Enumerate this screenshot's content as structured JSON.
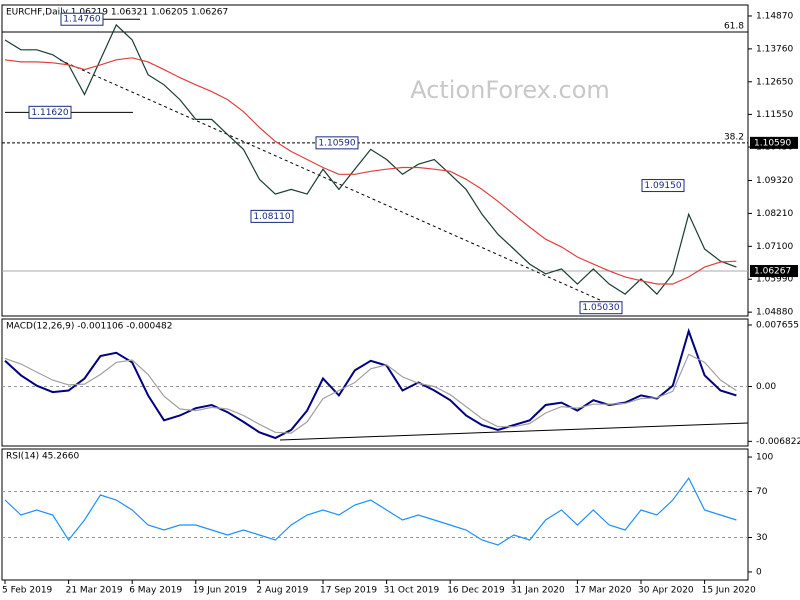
{
  "chart_data": [
    {
      "type": "line",
      "title": "EURCHF,Daily  1.06219 1.06321 1.06205 1.06267",
      "watermark": "ActionForex.com",
      "categories": [
        "5 Feb 2019",
        null,
        null,
        null,
        "21 Mar 2019",
        null,
        null,
        null,
        "6 May 2019",
        null,
        null,
        null,
        "19 Jun 2019",
        null,
        null,
        null,
        "2 Aug 2019",
        null,
        null,
        null,
        "17 Sep 2019",
        null,
        null,
        null,
        "31 Oct 2019",
        null,
        null,
        null,
        "16 Dec 2019",
        null,
        null,
        null,
        "31 Jan 2020",
        null,
        null,
        null,
        "17 Mar 2020",
        null,
        null,
        null,
        "30 Apr 2020",
        null,
        null,
        null,
        "15 Jun 2020",
        null,
        null
      ],
      "series": [
        {
          "color": "#1a3c2e",
          "values": [
            1.1406,
            1.1373,
            1.1373,
            1.1356,
            1.1322,
            1.1222,
            1.1339,
            1.1457,
            1.1406,
            1.1289,
            1.1255,
            1.1205,
            1.1138,
            1.1138,
            1.1087,
            1.1037,
            1.0936,
            1.0886,
            1.0902,
            1.0886,
            1.097,
            1.0902,
            1.097,
            1.1037,
            1.1003,
            1.0953,
            1.0987,
            1.1003,
            1.0953,
            1.0902,
            1.0818,
            1.0751,
            1.0701,
            1.065,
            1.0617,
            1.0634,
            1.0583,
            1.0634,
            1.0583,
            1.0549,
            1.06,
            1.0549,
            1.0617,
            1.0818,
            1.0701,
            1.066,
            1.064
          ]
        },
        {
          "color": "#e0403f",
          "values": [
            1.1339,
            1.1332,
            1.1332,
            1.1329,
            1.1322,
            1.1306,
            1.1322,
            1.1339,
            1.1346,
            1.1332,
            1.1306,
            1.1279,
            1.1255,
            1.1232,
            1.1205,
            1.1164,
            1.1111,
            1.1064,
            1.103,
            1.1003,
            1.0976,
            1.0953,
            1.0953,
            1.0963,
            1.097,
            1.0976,
            1.0976,
            1.097,
            1.0963,
            1.0936,
            1.0902,
            1.0862,
            1.0818,
            1.0775,
            1.0734,
            1.0708,
            1.0674,
            1.065,
            1.0627,
            1.0607,
            1.0594,
            1.0583,
            1.0583,
            1.0607,
            1.064,
            1.0657,
            1.066
          ]
        }
      ],
      "ylim": [
        1.0475,
        1.1524
      ],
      "yticks": [
        {
          "value": 1.1487,
          "label": "1.14870"
        },
        {
          "value": 1.1376,
          "label": "1.13760"
        },
        {
          "value": 1.1265,
          "label": "1.12650"
        },
        {
          "value": 1.1155,
          "label": "1.11550"
        },
        {
          "value": 1.1045,
          "label": "1.10450"
        },
        {
          "value": 1.0932,
          "label": "1.09320"
        },
        {
          "value": 1.0821,
          "label": "1.08210"
        },
        {
          "value": 1.071,
          "label": "1.07100"
        },
        {
          "value": 1.0599,
          "label": "1.05990"
        },
        {
          "value": 1.0488,
          "label": "1.04880"
        }
      ],
      "annotations": [
        {
          "value": 1.1476,
          "label": "1.14760"
        },
        {
          "value": 1.1162,
          "label": "1.11620"
        },
        {
          "value": 1.1059,
          "label": "1.10590"
        },
        {
          "value": 1.0811,
          "label": "1.08110"
        },
        {
          "value": 1.0915,
          "label": "1.09150"
        },
        {
          "value": 1.0503,
          "label": "1.05030"
        }
      ],
      "levels": [
        {
          "value": 1.1433,
          "label": "61.8"
        },
        {
          "value": 1.1059,
          "label": "38.2",
          "price_label": "1.10590"
        }
      ],
      "last_price": {
        "value": 1.06267,
        "label": "1.06267"
      }
    },
    {
      "type": "line",
      "title": "MACD(12,26,9) -0.001106 -0.000482",
      "series": [
        {
          "color": "#000080",
          "values": [
            0.0032,
            0.0014,
            0.0001,
            -0.0007,
            -0.0005,
            0.001,
            0.0038,
            0.0042,
            0.003,
            -0.0011,
            -0.0042,
            -0.0036,
            -0.0027,
            -0.0023,
            -0.0032,
            -0.0044,
            -0.0057,
            -0.0064,
            -0.0054,
            -0.003,
            0.001,
            -0.0011,
            0.002,
            0.0032,
            0.0026,
            -0.0005,
            0.0005,
            -0.0005,
            -0.0017,
            -0.0036,
            -0.0048,
            -0.0054,
            -0.0048,
            -0.0042,
            -0.0023,
            -0.002,
            -0.003,
            -0.0017,
            -0.0023,
            -0.002,
            -0.0011,
            -0.0015,
            0.0001,
            0.0069,
            0.0014,
            -0.0005,
            -0.0011
          ]
        },
        {
          "color": "#a0a0a0",
          "values": [
            0.0035,
            0.0028,
            0.0018,
            0.0008,
            0.0002,
            0.0003,
            0.0015,
            0.003,
            0.0033,
            0.0015,
            -0.0012,
            -0.0028,
            -0.003,
            -0.0026,
            -0.0028,
            -0.0036,
            -0.0047,
            -0.0057,
            -0.0058,
            -0.0044,
            -0.0015,
            -0.0005,
            0.0005,
            0.0022,
            0.0027,
            0.0012,
            0.0004,
            0,
            -0.001,
            -0.0025,
            -0.004,
            -0.005,
            -0.005,
            -0.0046,
            -0.0033,
            -0.0025,
            -0.0027,
            -0.0022,
            -0.0022,
            -0.0021,
            -0.0015,
            -0.0014,
            -0.0006,
            0.004,
            0.003,
            0.0008,
            -0.0005
          ]
        }
      ],
      "ylim": [
        -0.0074,
        0.0084
      ],
      "yticks": [
        0.007655,
        {
          "value": 0,
          "label": "0.00"
        },
        -0.006822
      ]
    },
    {
      "type": "line",
      "title": "RSI(14) 45.2660",
      "series": [
        {
          "color": "#1e90ff",
          "values": [
            62.6,
            49.6,
            53.9,
            49.6,
            27.8,
            45.2,
            67,
            62.6,
            53.9,
            40.9,
            36.5,
            40.9,
            40.9,
            36.5,
            32.2,
            36.5,
            32.2,
            27.8,
            40.9,
            49.6,
            53.9,
            49.6,
            58.3,
            62.6,
            53.9,
            45.2,
            49.6,
            45.2,
            40.9,
            36.5,
            27.8,
            23.5,
            32.2,
            27.8,
            45.2,
            53.9,
            40.9,
            53.9,
            40.9,
            36.5,
            53.9,
            49.6,
            62.6,
            81.7,
            53.9,
            49.6,
            45.2
          ]
        }
      ],
      "ylim": [
        -7,
        107
      ],
      "yticks": [
        100,
        70,
        30,
        0
      ]
    }
  ]
}
